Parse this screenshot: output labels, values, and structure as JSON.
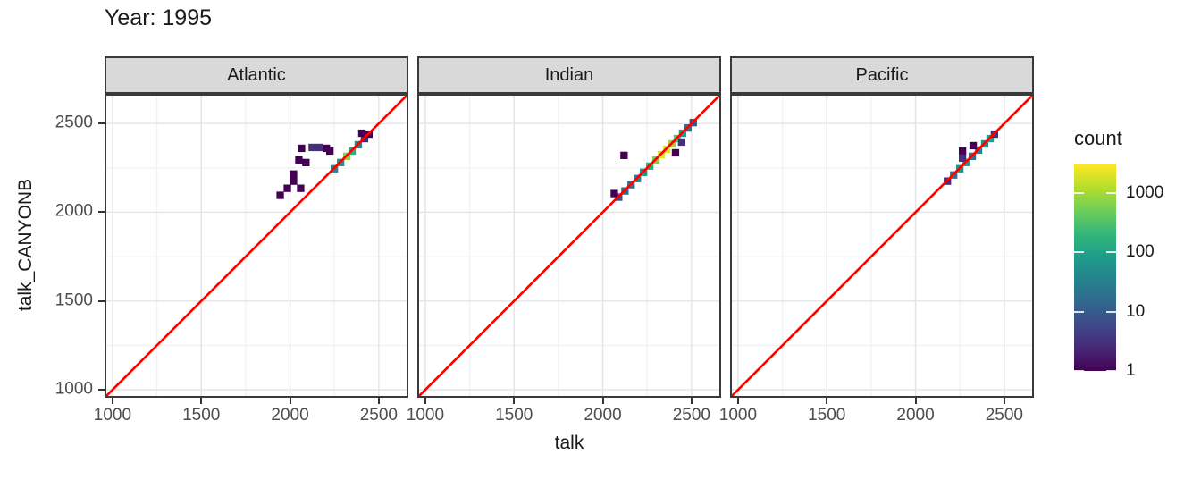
{
  "title": "Year: 1995",
  "axes": {
    "x_label": "talk",
    "y_label": "talk_CANYONB"
  },
  "legend": {
    "title": "count",
    "tick_labels": [
      "1000",
      "100",
      "10",
      "1"
    ],
    "tick_values": [
      1000,
      100,
      10,
      1
    ],
    "scale": "log10",
    "max_count": 3000,
    "viridis_palette": [
      "#440154",
      "#482878",
      "#3e4989",
      "#31688e",
      "#26828e",
      "#1f9e89",
      "#35b779",
      "#6ece58",
      "#b5de2b",
      "#fde725"
    ]
  },
  "colors": {
    "identity_line": "#fe0000",
    "strip_fill": "#d9d9d9",
    "strip_border": "#3a3a3a",
    "panel_border": "#3a3a3a",
    "grid_major": "#e4e4e4",
    "grid_minor": "#f2f2f2",
    "tick_text": "#4d4d4d",
    "text": "#1a1a1a"
  },
  "chart_data": {
    "type": "heatmap",
    "subtype": "2d-bin count density (geom_bin2d) of talk_CANYONB vs talk, faceted by ocean basin",
    "title": "Year: 1995",
    "xlabel": "talk",
    "ylabel": "talk_CANYONB",
    "facet_labels": [
      "Atlantic",
      "Indian",
      "Pacific"
    ],
    "x_ticks": [
      1000,
      1500,
      2000,
      2500
    ],
    "y_ticks": [
      1000,
      1500,
      2000,
      2500
    ],
    "minor_grid": [
      1250,
      1750,
      2250
    ],
    "xlim": [
      955,
      2667
    ],
    "ylim": [
      955,
      2667
    ],
    "grid": true,
    "bin_size": 42,
    "identity_line": {
      "equation": "y = x",
      "color": "#fe0000"
    },
    "legend_position": "right",
    "legend": {
      "title": "count",
      "scale": "log10",
      "ticks": [
        1,
        10,
        100,
        1000
      ],
      "max": 3000,
      "palette": "viridis"
    },
    "facets": [
      {
        "label": "Atlantic",
        "bins": [
          [
            2250,
            2245,
            35
          ],
          [
            2285,
            2280,
            60
          ],
          [
            2320,
            2315,
            700
          ],
          [
            2350,
            2345,
            150
          ],
          [
            2385,
            2380,
            35
          ],
          [
            2420,
            2415,
            3
          ],
          [
            2445,
            2440,
            1
          ],
          [
            2405,
            2445,
            1
          ],
          [
            2065,
            2360,
            1
          ],
          [
            2125,
            2365,
            3
          ],
          [
            2165,
            2365,
            3
          ],
          [
            2205,
            2360,
            1
          ],
          [
            2225,
            2345,
            1
          ],
          [
            2050,
            2295,
            1
          ],
          [
            2090,
            2280,
            1
          ],
          [
            2020,
            2215,
            1
          ],
          [
            2020,
            2175,
            1
          ],
          [
            1985,
            2135,
            1
          ],
          [
            1945,
            2095,
            1
          ],
          [
            2060,
            2135,
            1
          ]
        ]
      },
      {
        "label": "Indian",
        "bins": [
          [
            2090,
            2085,
            7
          ],
          [
            2125,
            2120,
            15
          ],
          [
            2160,
            2155,
            20
          ],
          [
            2195,
            2190,
            35
          ],
          [
            2230,
            2225,
            60
          ],
          [
            2265,
            2260,
            150
          ],
          [
            2300,
            2295,
            600
          ],
          [
            2330,
            2325,
            2200
          ],
          [
            2360,
            2355,
            2200
          ],
          [
            2390,
            2385,
            900
          ],
          [
            2420,
            2415,
            350
          ],
          [
            2450,
            2445,
            90
          ],
          [
            2480,
            2475,
            20
          ],
          [
            2510,
            2505,
            7
          ],
          [
            2065,
            2105,
            1
          ],
          [
            2120,
            2320,
            1
          ],
          [
            2410,
            2335,
            1
          ],
          [
            2445,
            2395,
            3
          ]
        ]
      },
      {
        "label": "Pacific",
        "bins": [
          [
            2180,
            2175,
            3
          ],
          [
            2215,
            2210,
            20
          ],
          [
            2250,
            2245,
            60
          ],
          [
            2285,
            2280,
            90
          ],
          [
            2320,
            2315,
            20
          ],
          [
            2355,
            2350,
            35
          ],
          [
            2390,
            2385,
            60
          ],
          [
            2420,
            2415,
            90
          ],
          [
            2445,
            2440,
            3
          ],
          [
            2265,
            2345,
            1
          ],
          [
            2265,
            2305,
            3
          ],
          [
            2325,
            2375,
            1
          ]
        ]
      }
    ]
  }
}
